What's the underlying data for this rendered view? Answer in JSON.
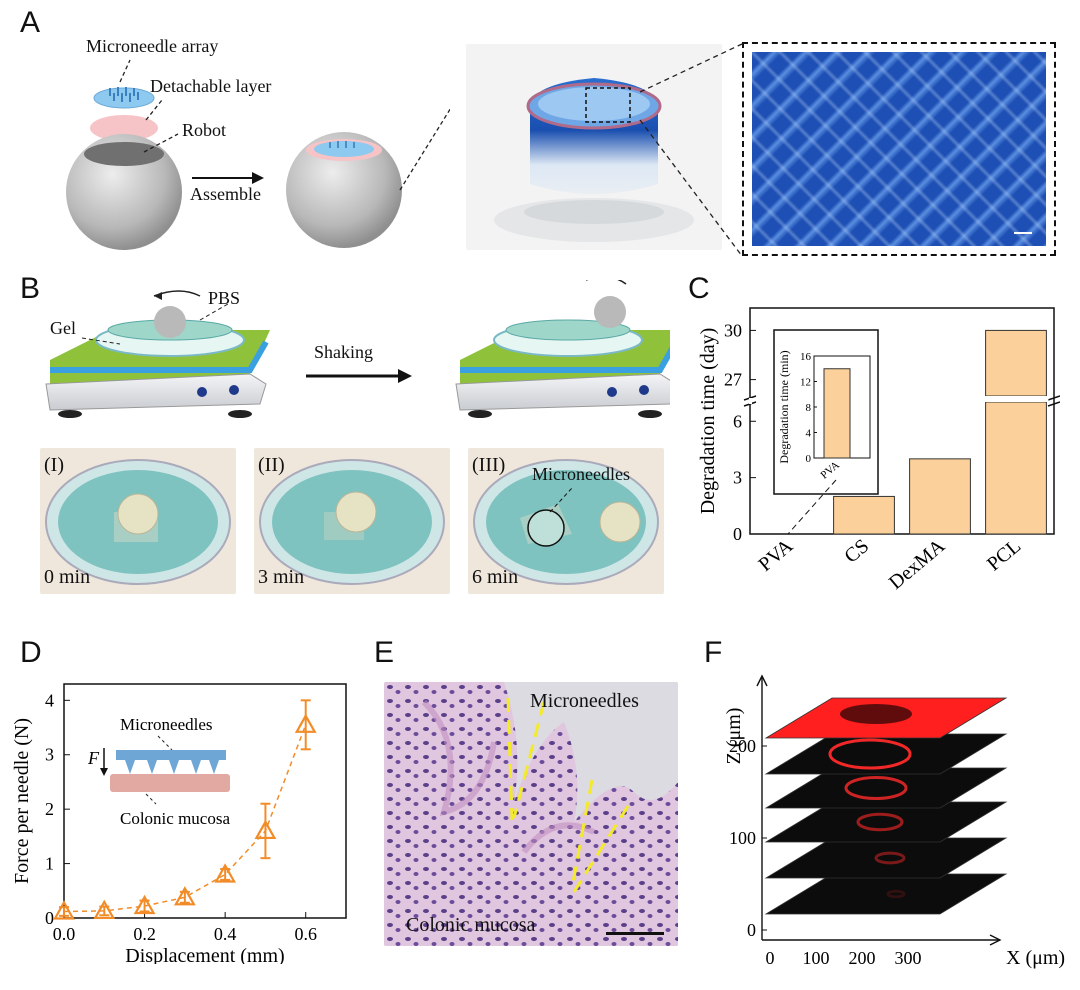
{
  "panels": {
    "a": "A",
    "b": "B",
    "c": "C",
    "d": "D",
    "e": "E",
    "f": "F"
  },
  "panelA": {
    "microneedle_array": "Microneedle array",
    "detachable_layer": "Detachable layer",
    "robot": "Robot",
    "assemble": "Assemble"
  },
  "panelB": {
    "pbs": "PBS",
    "gel": "Gel",
    "shaking": "Shaking",
    "photos": [
      {
        "tag": "(I)",
        "time": "0 min"
      },
      {
        "tag": "(II)",
        "time": "3 min"
      },
      {
        "tag": "(III)",
        "time": "6 min",
        "note": "Microneedles"
      }
    ]
  },
  "panelE": {
    "microneedles": "Microneedles",
    "mucosa": "Colonic mucosa"
  },
  "chart_data": [
    {
      "id": "C",
      "type": "bar",
      "ylabel": "Degradation time (day)",
      "categories": [
        "PVA",
        "CS",
        "DexMA",
        "PCL"
      ],
      "values": [
        0.0097,
        2,
        4,
        30
      ],
      "yticks_lower": [
        0,
        3,
        6
      ],
      "yticks_upper": [
        27,
        30
      ],
      "axis_break": true,
      "color": "#fcd09a",
      "inset": {
        "ylabel": "Degradation time (min)",
        "category": "PVA",
        "value": 14,
        "yticks": [
          0,
          4,
          8,
          12,
          16
        ],
        "ylim": [
          0,
          16
        ]
      }
    },
    {
      "id": "D",
      "type": "scatter",
      "xlabel": "Displacement (mm)",
      "ylabel": "Force per needle (N)",
      "x": [
        0.0,
        0.1,
        0.2,
        0.3,
        0.4,
        0.5,
        0.6
      ],
      "y": [
        0.12,
        0.13,
        0.22,
        0.38,
        0.8,
        1.6,
        3.55
      ],
      "err": [
        0.08,
        0.08,
        0.1,
        0.1,
        0.1,
        0.5,
        0.45
      ],
      "xlim": [
        0,
        0.7
      ],
      "ylim": [
        0,
        4.3
      ],
      "xticks": [
        "0.0",
        "0.2",
        "0.4",
        "0.6"
      ],
      "yticks": [
        0,
        1,
        2,
        3,
        4
      ],
      "color": "#f28c28",
      "inset_labels": {
        "top": "Microneedles",
        "bottom": "Colonic mucosa",
        "force": "F"
      }
    },
    {
      "id": "F",
      "type": "3d-stack",
      "xlabel": "X (μm)",
      "ylabel": "Z (μm)",
      "xticks": [
        0,
        100,
        200,
        300
      ],
      "zticks": [
        0,
        100,
        200
      ]
    }
  ]
}
